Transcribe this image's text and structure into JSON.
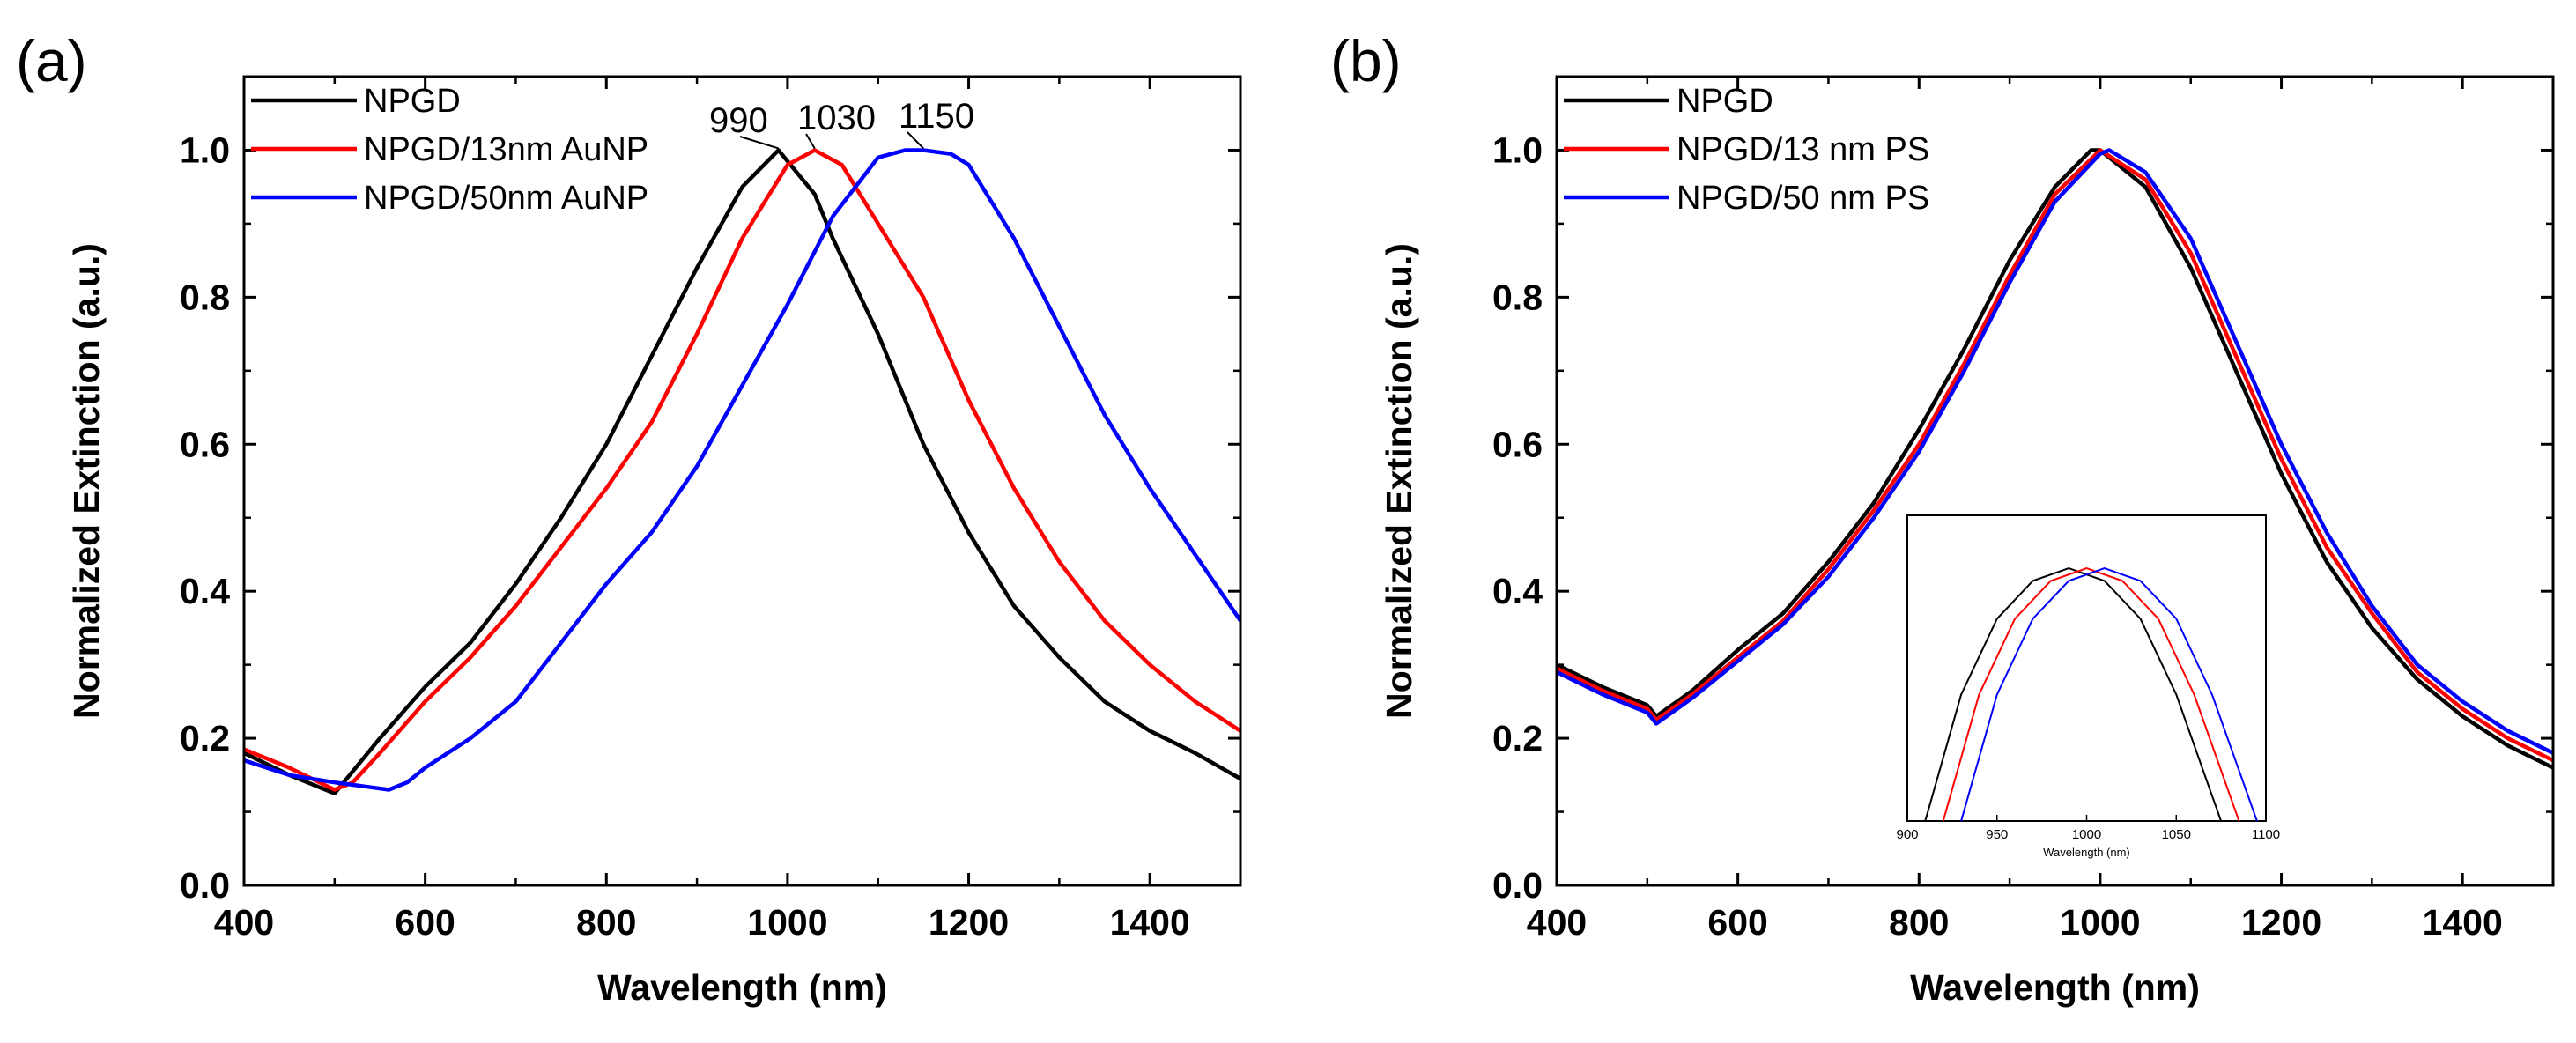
{
  "panel_labels": [
    "(a)",
    "(b)"
  ],
  "chart_data": [
    {
      "type": "line",
      "panel": "(a)",
      "title": "",
      "xlabel": "Wavelength (nm)",
      "ylabel": "Normalized Extinction (a.u.)",
      "xlim": [
        400,
        1500
      ],
      "ylim": [
        0.0,
        1.1
      ],
      "xticks": [
        400,
        600,
        800,
        1000,
        1200,
        1400
      ],
      "yticks": [
        0.0,
        0.2,
        0.4,
        0.6,
        0.8,
        1.0
      ],
      "xtick_labels": [
        "400",
        "600",
        "800",
        "1000",
        "1200",
        "1400"
      ],
      "ytick_labels": [
        "0.0",
        "0.2",
        "0.4",
        "0.6",
        "0.8",
        "1.0"
      ],
      "grid": false,
      "legend_position": "top-left",
      "series": [
        {
          "name": "NPGD",
          "color": "#000000",
          "x": [
            400,
            450,
            500,
            510,
            550,
            600,
            650,
            700,
            750,
            800,
            850,
            900,
            950,
            990,
            1030,
            1050,
            1100,
            1150,
            1200,
            1250,
            1300,
            1350,
            1400,
            1450,
            1500
          ],
          "y": [
            0.18,
            0.15,
            0.125,
            0.14,
            0.2,
            0.27,
            0.33,
            0.41,
            0.5,
            0.6,
            0.72,
            0.84,
            0.95,
            1.0,
            0.94,
            0.88,
            0.75,
            0.6,
            0.48,
            0.38,
            0.31,
            0.25,
            0.21,
            0.18,
            0.145
          ]
        },
        {
          "name": "NPGD/13nm AuNP",
          "color": "#ff0000",
          "x": [
            400,
            450,
            500,
            520,
            550,
            600,
            650,
            700,
            750,
            800,
            850,
            900,
            950,
            1000,
            1030,
            1060,
            1100,
            1150,
            1200,
            1250,
            1300,
            1350,
            1400,
            1450,
            1500
          ],
          "y": [
            0.185,
            0.16,
            0.13,
            0.14,
            0.18,
            0.25,
            0.31,
            0.38,
            0.46,
            0.54,
            0.63,
            0.75,
            0.88,
            0.98,
            1.0,
            0.98,
            0.9,
            0.8,
            0.66,
            0.54,
            0.44,
            0.36,
            0.3,
            0.25,
            0.21
          ]
        },
        {
          "name": "NPGD/50nm AuNP",
          "color": "#0000ff",
          "x": [
            400,
            450,
            500,
            530,
            560,
            580,
            600,
            650,
            700,
            750,
            800,
            850,
            900,
            950,
            1000,
            1050,
            1100,
            1130,
            1150,
            1180,
            1200,
            1250,
            1300,
            1350,
            1400,
            1450,
            1500
          ],
          "y": [
            0.17,
            0.15,
            0.14,
            0.135,
            0.13,
            0.14,
            0.16,
            0.2,
            0.25,
            0.33,
            0.41,
            0.48,
            0.57,
            0.68,
            0.79,
            0.91,
            0.99,
            1.0,
            1.0,
            0.995,
            0.98,
            0.88,
            0.76,
            0.64,
            0.54,
            0.45,
            0.36
          ]
        }
      ],
      "annotations": [
        {
          "text": "990",
          "x": 990,
          "y": 1.0
        },
        {
          "text": "1030",
          "x": 1030,
          "y": 1.0
        },
        {
          "text": "1150",
          "x": 1150,
          "y": 1.0
        }
      ],
      "inset": null
    },
    {
      "type": "line",
      "panel": "(b)",
      "title": "",
      "xlabel": "Wavelength (nm)",
      "ylabel": "Normalized Extinction (a.u.)",
      "xlim": [
        400,
        1500
      ],
      "ylim": [
        0.0,
        1.1
      ],
      "xticks": [
        400,
        600,
        800,
        1000,
        1200,
        1400
      ],
      "yticks": [
        0.0,
        0.2,
        0.4,
        0.6,
        0.8,
        1.0
      ],
      "xtick_labels": [
        "400",
        "600",
        "800",
        "1000",
        "1200",
        "1400"
      ],
      "ytick_labels": [
        "0.0",
        "0.2",
        "0.4",
        "0.6",
        "0.8",
        "1.0"
      ],
      "grid": false,
      "legend_position": "top-left",
      "series": [
        {
          "name": "NPGD",
          "color": "#000000",
          "x": [
            400,
            450,
            500,
            510,
            550,
            600,
            650,
            700,
            750,
            800,
            850,
            900,
            950,
            990,
            1000,
            1050,
            1100,
            1150,
            1200,
            1250,
            1300,
            1350,
            1400,
            1450,
            1500
          ],
          "y": [
            0.3,
            0.27,
            0.245,
            0.23,
            0.265,
            0.32,
            0.37,
            0.44,
            0.52,
            0.62,
            0.73,
            0.85,
            0.95,
            1.0,
            1.0,
            0.95,
            0.84,
            0.7,
            0.56,
            0.44,
            0.35,
            0.28,
            0.23,
            0.19,
            0.16
          ]
        },
        {
          "name": "NPGD/13 nm PS",
          "color": "#ff0000",
          "x": [
            400,
            450,
            500,
            510,
            550,
            600,
            650,
            700,
            750,
            800,
            850,
            900,
            950,
            1000,
            1050,
            1100,
            1150,
            1200,
            1250,
            1300,
            1350,
            1400,
            1450,
            1500
          ],
          "y": [
            0.295,
            0.265,
            0.24,
            0.225,
            0.26,
            0.31,
            0.36,
            0.43,
            0.51,
            0.6,
            0.71,
            0.83,
            0.94,
            1.0,
            0.96,
            0.86,
            0.72,
            0.58,
            0.46,
            0.37,
            0.29,
            0.24,
            0.2,
            0.17
          ]
        },
        {
          "name": "NPGD/50 nm PS",
          "color": "#0000ff",
          "x": [
            400,
            450,
            500,
            510,
            550,
            600,
            650,
            700,
            750,
            800,
            850,
            900,
            950,
            1000,
            1010,
            1050,
            1100,
            1150,
            1200,
            1250,
            1300,
            1350,
            1400,
            1450,
            1500
          ],
          "y": [
            0.29,
            0.26,
            0.235,
            0.22,
            0.255,
            0.305,
            0.355,
            0.42,
            0.5,
            0.59,
            0.7,
            0.82,
            0.93,
            0.995,
            1.0,
            0.97,
            0.88,
            0.74,
            0.6,
            0.48,
            0.38,
            0.3,
            0.25,
            0.21,
            0.18
          ]
        }
      ],
      "annotations": [],
      "inset": {
        "type": "line",
        "xlabel": "Wavelength (nm)",
        "xlim": [
          900,
          1100
        ],
        "ylim": [
          0.0,
          1.0
        ],
        "xticks": [
          900,
          950,
          1000,
          1050,
          1100
        ],
        "xtick_labels": [
          "900",
          "950",
          "1000",
          "1050",
          "1100"
        ],
        "series": [
          {
            "name": "NPGD",
            "color": "#000000",
            "x": [
              910,
              930,
              950,
              970,
              990,
              1010,
              1030,
              1050,
              1070,
              1080
            ],
            "y": [
              0.0,
              0.5,
              0.8,
              0.95,
              1.0,
              0.95,
              0.8,
              0.5,
              0.1,
              -0.1
            ]
          },
          {
            "name": "NPGD/13 nm PS",
            "color": "#ff0000",
            "x": [
              920,
              940,
              960,
              980,
              1000,
              1020,
              1040,
              1060,
              1080,
              1090
            ],
            "y": [
              0.0,
              0.5,
              0.8,
              0.95,
              1.0,
              0.95,
              0.8,
              0.5,
              0.1,
              -0.1
            ]
          },
          {
            "name": "NPGD/50 nm PS",
            "color": "#0000ff",
            "x": [
              930,
              950,
              970,
              990,
              1010,
              1030,
              1050,
              1070,
              1090,
              1100
            ],
            "y": [
              0.0,
              0.5,
              0.8,
              0.95,
              1.0,
              0.95,
              0.8,
              0.5,
              0.1,
              -0.1
            ]
          }
        ]
      }
    }
  ]
}
